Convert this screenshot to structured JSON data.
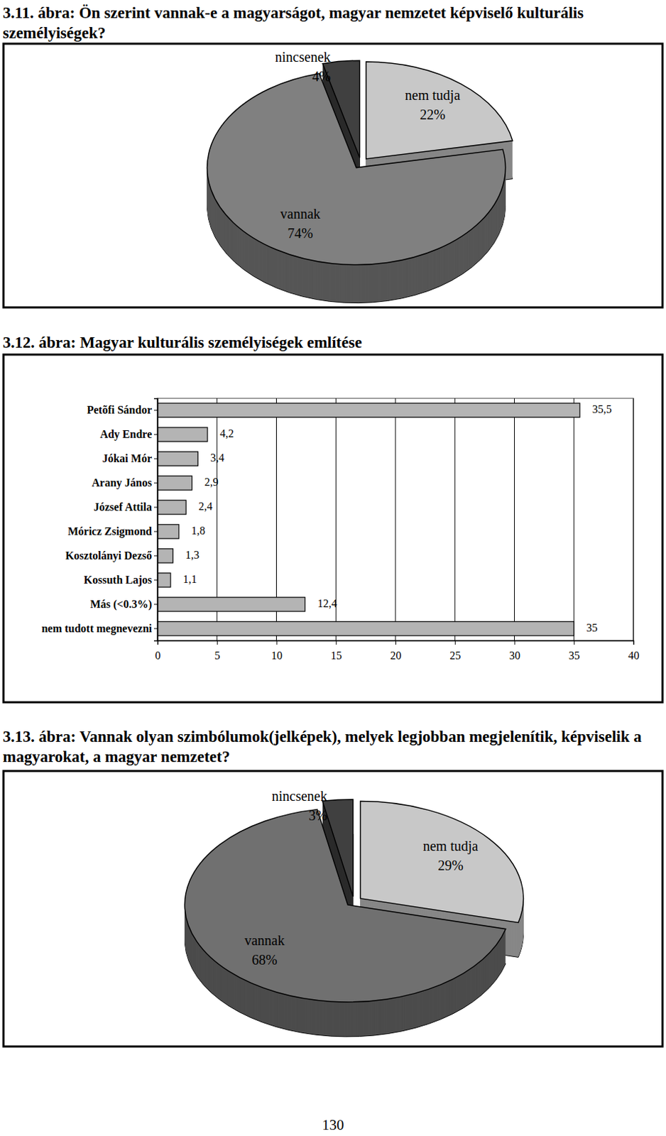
{
  "chart_data": [
    {
      "type": "pie",
      "title": "3.11. ábra: Ön szerint vannak-e a magyarságot, magyar nemzetet képviselő kulturális személyiségek?",
      "categories": [
        "nem tudja",
        "vannak",
        "nincsenek"
      ],
      "values": [
        22,
        74,
        4
      ],
      "value_labels": [
        "22%",
        "74%",
        "4%"
      ],
      "colors": [
        "#c8c8c8",
        "#808080",
        "#404040"
      ],
      "data_labels": true
    },
    {
      "type": "bar",
      "orientation": "horizontal",
      "title": "3.12. ábra: Magyar kulturális személyiségek említése",
      "categories": [
        "Petõfi Sándor",
        "Ady Endre",
        "Jókai Mór",
        "Arany János",
        "József Attila",
        "Móricz Zsigmond",
        "Kosztolányi Dezső",
        "Kossuth Lajos",
        "Más (<0.3%)",
        "nem tudott megnevezni"
      ],
      "values": [
        35.5,
        4.2,
        3.4,
        2.9,
        2.4,
        1.8,
        1.3,
        1.1,
        12.4,
        35
      ],
      "value_labels": [
        "35,5",
        "4,2",
        "3,4",
        "2,9",
        "2,4",
        "1,8",
        "1,3",
        "1,1",
        "12,4",
        "35"
      ],
      "color": "#b4b4b4",
      "xlim": [
        0,
        40
      ],
      "xticks": [
        0,
        5,
        10,
        15,
        20,
        25,
        30,
        35,
        40
      ],
      "grid": true,
      "data_labels": true
    },
    {
      "type": "pie",
      "title": "3.13. ábra: Vannak olyan szimbólumok(jelképek), melyek legjobban megjelenítik, képviselik a magyarokat, a magyar nemzetet?",
      "categories": [
        "nem tudja",
        "vannak",
        "nincsenek"
      ],
      "values": [
        29,
        68,
        3
      ],
      "value_labels": [
        "29%",
        "68%",
        "3%"
      ],
      "colors": [
        "#c8c8c8",
        "#707070",
        "#404040"
      ],
      "data_labels": true
    }
  ],
  "page_number": "130"
}
